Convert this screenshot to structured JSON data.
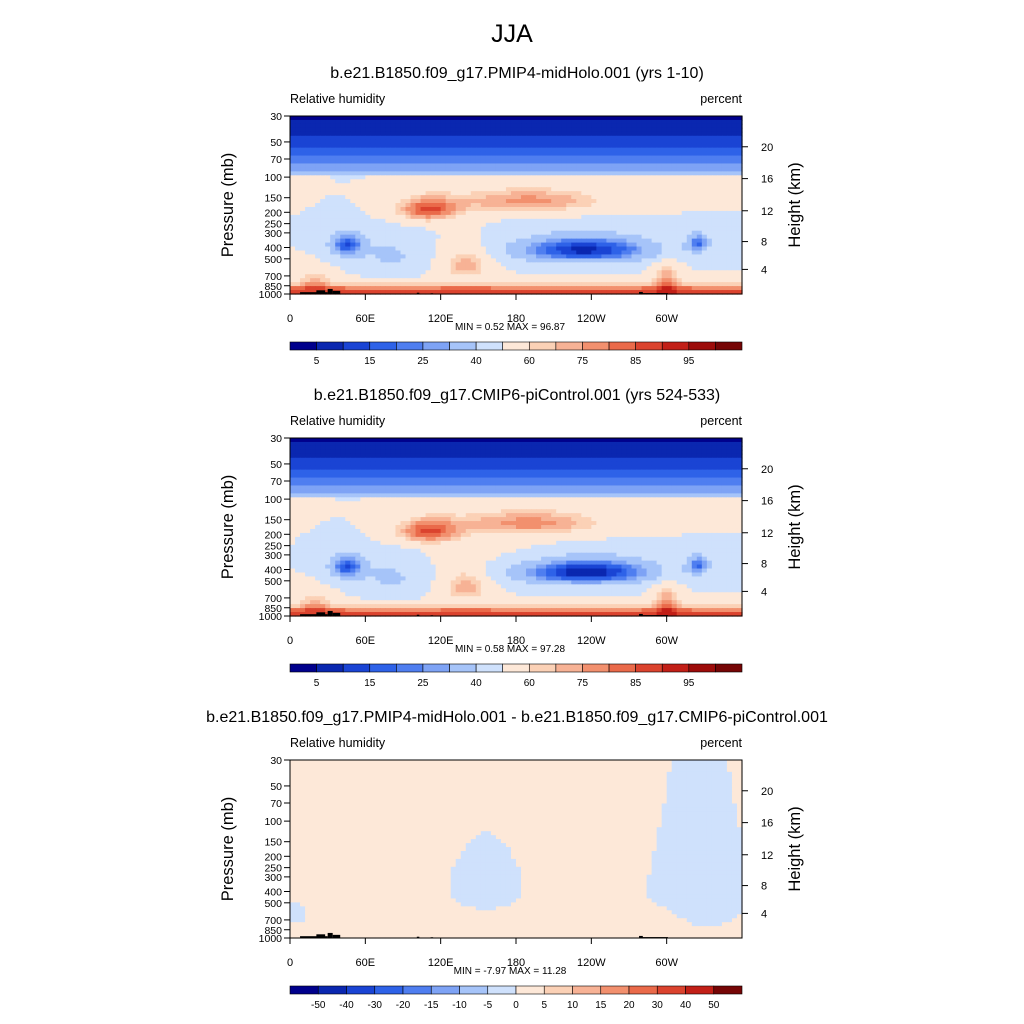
{
  "figure": {
    "title": "JJA"
  },
  "chart_data": [
    {
      "type": "heatmap",
      "title": "b.e21.B1850.f09_g17.PMIP4-midHolo.001 (yrs 1-10)",
      "variable": "Relative humidity",
      "units": "percent",
      "ylabel": "Pressure (mb)",
      "ylabel_right": "Height (km)",
      "x_ticks": [
        "0",
        "60E",
        "120E",
        "180",
        "120W",
        "60W"
      ],
      "y_ticks": [
        "30",
        "50",
        "70",
        "100",
        "150",
        "200",
        "250",
        "300",
        "400",
        "500",
        "700",
        "850",
        "1000"
      ],
      "height_ticks": [
        "20",
        "16",
        "12",
        "8",
        "4"
      ],
      "stats": "MIN =   0.52  MAX =  96.87",
      "min": 0.52,
      "max": 96.87,
      "colorbar_labels": [
        "5",
        "15",
        "25",
        "40",
        "60",
        "75",
        "85",
        "95"
      ],
      "colorbar_colors": [
        "#00008c",
        "#0a27b0",
        "#1a44d4",
        "#2e62e8",
        "#4f7ef0",
        "#7ea3f5",
        "#a6c4f9",
        "#cfe1fc",
        "#fde8d8",
        "#fbd1b6",
        "#f7b295",
        "#f2906e",
        "#ea6a4a",
        "#db432e",
        "#c21f17",
        "#9d0c0a",
        "#760505"
      ]
    },
    {
      "type": "heatmap",
      "title": "b.e21.B1850.f09_g17.CMIP6-piControl.001 (yrs 524-533)",
      "variable": "Relative humidity",
      "units": "percent",
      "ylabel": "Pressure (mb)",
      "ylabel_right": "Height (km)",
      "x_ticks": [
        "0",
        "60E",
        "120E",
        "180",
        "120W",
        "60W"
      ],
      "y_ticks": [
        "30",
        "50",
        "70",
        "100",
        "150",
        "200",
        "250",
        "300",
        "400",
        "500",
        "700",
        "850",
        "1000"
      ],
      "height_ticks": [
        "20",
        "16",
        "12",
        "8",
        "4"
      ],
      "stats": "MIN =   0.58  MAX =  97.28",
      "min": 0.58,
      "max": 97.28,
      "colorbar_labels": [
        "5",
        "15",
        "25",
        "40",
        "60",
        "75",
        "85",
        "95"
      ],
      "colorbar_colors": [
        "#00008c",
        "#0a27b0",
        "#1a44d4",
        "#2e62e8",
        "#4f7ef0",
        "#7ea3f5",
        "#a6c4f9",
        "#cfe1fc",
        "#fde8d8",
        "#fbd1b6",
        "#f7b295",
        "#f2906e",
        "#ea6a4a",
        "#db432e",
        "#c21f17",
        "#9d0c0a",
        "#760505"
      ]
    },
    {
      "type": "heatmap",
      "title": "b.e21.B1850.f09_g17.PMIP4-midHolo.001 - b.e21.B1850.f09_g17.CMIP6-piControl.001",
      "variable": "Relative humidity",
      "units": "percent",
      "ylabel": "Pressure (mb)",
      "ylabel_right": "Height (km)",
      "x_ticks": [
        "0",
        "60E",
        "120E",
        "180",
        "120W",
        "60W"
      ],
      "y_ticks": [
        "30",
        "50",
        "70",
        "100",
        "150",
        "200",
        "250",
        "300",
        "400",
        "500",
        "700",
        "850",
        "1000"
      ],
      "height_ticks": [
        "20",
        "16",
        "12",
        "8",
        "4"
      ],
      "stats": "MIN =  -7.97  MAX =  11.28",
      "min": -7.97,
      "max": 11.28,
      "colorbar_labels": [
        "-50",
        "-40",
        "-30",
        "-20",
        "-15",
        "-10",
        "-5",
        "0",
        "5",
        "10",
        "15",
        "20",
        "30",
        "40",
        "50"
      ],
      "colorbar_colors": [
        "#00008c",
        "#0a27b0",
        "#1a44d4",
        "#2e62e8",
        "#4f7ef0",
        "#7ea3f5",
        "#a6c4f9",
        "#cfe1fc",
        "#fde8d8",
        "#fbd1b6",
        "#f7b295",
        "#f2906e",
        "#ea6a4a",
        "#db432e",
        "#c21f17",
        "#760505"
      ]
    }
  ]
}
